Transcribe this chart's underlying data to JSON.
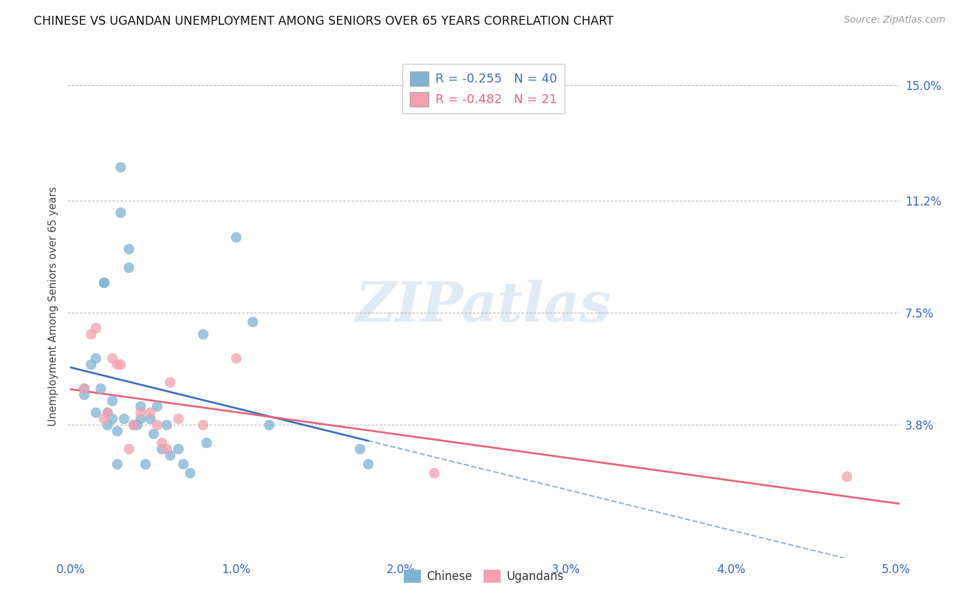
{
  "title": "CHINESE VS UGANDAN UNEMPLOYMENT AMONG SENIORS OVER 65 YEARS CORRELATION CHART",
  "source": "Source: ZipAtlas.com",
  "ylabel": "Unemployment Among Seniors over 65 years",
  "ytick_labels": [
    "15.0%",
    "11.2%",
    "7.5%",
    "3.8%"
  ],
  "ytick_values": [
    0.15,
    0.112,
    0.075,
    0.038
  ],
  "xlim": [
    -0.0002,
    0.0502
  ],
  "ylim": [
    -0.006,
    0.16
  ],
  "chinese_x": [
    0.0008,
    0.0008,
    0.0012,
    0.0015,
    0.0015,
    0.0018,
    0.002,
    0.002,
    0.0022,
    0.0022,
    0.0025,
    0.0025,
    0.0028,
    0.0028,
    0.003,
    0.003,
    0.0032,
    0.0035,
    0.0035,
    0.0038,
    0.004,
    0.0042,
    0.0042,
    0.0045,
    0.0048,
    0.005,
    0.0052,
    0.0055,
    0.0058,
    0.006,
    0.0065,
    0.0068,
    0.0072,
    0.008,
    0.0082,
    0.01,
    0.011,
    0.012,
    0.0175,
    0.018
  ],
  "chinese_y": [
    0.05,
    0.048,
    0.058,
    0.06,
    0.042,
    0.05,
    0.085,
    0.085,
    0.042,
    0.038,
    0.046,
    0.04,
    0.036,
    0.025,
    0.123,
    0.108,
    0.04,
    0.096,
    0.09,
    0.038,
    0.038,
    0.044,
    0.04,
    0.025,
    0.04,
    0.035,
    0.044,
    0.03,
    0.038,
    0.028,
    0.03,
    0.025,
    0.022,
    0.068,
    0.032,
    0.1,
    0.072,
    0.038,
    0.03,
    0.025
  ],
  "ugandan_x": [
    0.0008,
    0.0012,
    0.0015,
    0.002,
    0.0022,
    0.0025,
    0.0028,
    0.003,
    0.0035,
    0.0038,
    0.0042,
    0.0048,
    0.0052,
    0.0055,
    0.0058,
    0.006,
    0.0065,
    0.008,
    0.01,
    0.022,
    0.047
  ],
  "ugandan_y": [
    0.05,
    0.068,
    0.07,
    0.04,
    0.042,
    0.06,
    0.058,
    0.058,
    0.03,
    0.038,
    0.042,
    0.042,
    0.038,
    0.032,
    0.03,
    0.052,
    0.04,
    0.038,
    0.06,
    0.022,
    0.021
  ],
  "chinese_color": "#7fb3d3",
  "ugandan_color": "#f4a0b0",
  "chinese_line_color": "#3a6fbd",
  "ugandan_line_color": "#e8637a",
  "chinese_r": -0.255,
  "chinese_n": 40,
  "ugandan_r": -0.482,
  "ugandan_n": 21,
  "tick_color": "#3366cc",
  "watermark_text": "ZIPatlas",
  "background_color": "#ffffff",
  "grid_color": "#bbbbbb"
}
